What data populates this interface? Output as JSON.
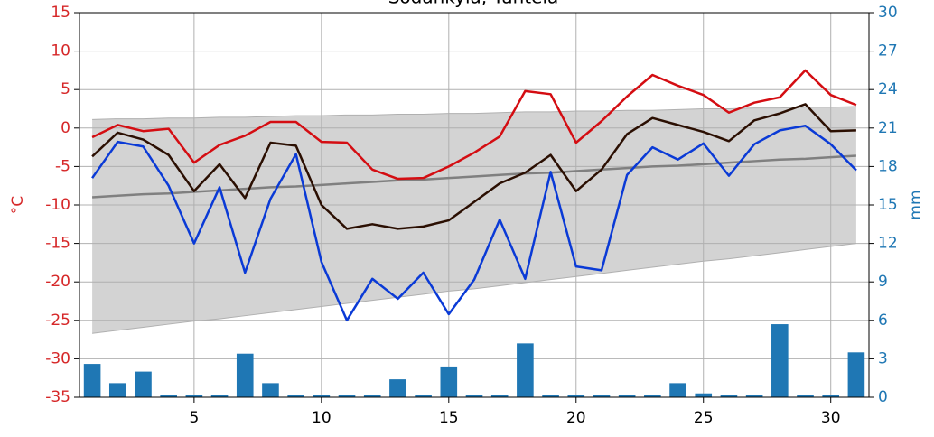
{
  "chart_data": {
    "type": "line",
    "title": "Sodankylä, Tähtelä",
    "ylabel": "°C",
    "y2label": "mm",
    "x": [
      1,
      2,
      3,
      4,
      5,
      6,
      7,
      8,
      9,
      10,
      11,
      12,
      13,
      14,
      15,
      16,
      17,
      18,
      19,
      20,
      21,
      22,
      23,
      24,
      25,
      26,
      27,
      28,
      29,
      30,
      31
    ],
    "xlim": [
      0.5,
      31.5
    ],
    "xticks": [
      5,
      10,
      15,
      20,
      25,
      30
    ],
    "ylim": [
      -35,
      15
    ],
    "yticks": [
      -35,
      -30,
      -25,
      -20,
      -15,
      -10,
      -5,
      0,
      5,
      10,
      15
    ],
    "y2lim": [
      0,
      30
    ],
    "y2ticks": [
      0,
      3,
      6,
      9,
      12,
      15,
      18,
      21,
      24,
      27,
      30
    ],
    "grid": true,
    "ycolor": "#d62728",
    "y2color": "#1f77b4",
    "band": {
      "color": "#d3d3d3",
      "edge": "#b0b0b0",
      "upper": [
        1.1,
        1.2,
        1.2,
        1.3,
        1.3,
        1.4,
        1.4,
        1.5,
        1.6,
        1.6,
        1.7,
        1.7,
        1.8,
        1.8,
        1.9,
        1.9,
        2.0,
        2.1,
        2.1,
        2.2,
        2.2,
        2.3,
        2.3,
        2.4,
        2.5,
        2.5,
        2.6,
        2.6,
        2.7,
        2.7,
        2.8
      ],
      "lower": [
        -26.7,
        -26.3,
        -25.9,
        -25.5,
        -25.1,
        -24.8,
        -24.4,
        -24.0,
        -23.6,
        -23.2,
        -22.8,
        -22.4,
        -22.0,
        -21.6,
        -21.2,
        -20.9,
        -20.5,
        -20.1,
        -19.7,
        -19.3,
        -18.9,
        -18.5,
        -18.1,
        -17.7,
        -17.3,
        -17.0,
        -16.6,
        -16.2,
        -15.8,
        -15.4,
        -15.0
      ]
    },
    "series": [
      {
        "color": "#1f77b4",
        "axis": "y2",
        "type": "bar",
        "values": [
          2.6,
          1.1,
          2.0,
          0.2,
          0.2,
          0.2,
          3.4,
          1.1,
          0.2,
          0.2,
          0.2,
          0.2,
          1.4,
          0.2,
          2.4,
          0.2,
          0.2,
          4.2,
          0.2,
          0.2,
          0.2,
          0.2,
          0.2,
          1.1,
          0.3,
          0.2,
          0.2,
          5.7,
          0.2,
          0.2,
          3.5
        ]
      },
      {
        "color": "#808080",
        "type": "line",
        "values": [
          -9.0,
          -8.8,
          -8.6,
          -8.5,
          -8.3,
          -8.1,
          -7.9,
          -7.7,
          -7.6,
          -7.4,
          -7.2,
          -7.0,
          -6.8,
          -6.7,
          -6.5,
          -6.3,
          -6.1,
          -5.9,
          -5.8,
          -5.6,
          -5.4,
          -5.2,
          -5.0,
          -4.9,
          -4.7,
          -4.5,
          -4.3,
          -4.1,
          -4.0,
          -3.8,
          -3.6
        ]
      },
      {
        "color": "#d40d12",
        "type": "line",
        "values": [
          -1.2,
          0.4,
          -0.4,
          -0.1,
          -4.5,
          -2.2,
          -1.0,
          0.8,
          0.8,
          -1.8,
          -1.9,
          -5.4,
          -6.6,
          -6.5,
          -5.0,
          -3.2,
          -1.1,
          4.8,
          4.4,
          -1.9,
          0.9,
          4.1,
          6.9,
          5.5,
          4.3,
          2.0,
          3.3,
          4.0,
          7.5,
          4.3,
          3.0
        ]
      },
      {
        "color": "#2b0f02",
        "type": "line",
        "values": [
          -3.7,
          -0.6,
          -1.5,
          -3.5,
          -8.2,
          -4.7,
          -9.1,
          -1.9,
          -2.3,
          -10.0,
          -13.1,
          -12.5,
          -13.1,
          -12.8,
          -12.0,
          -9.6,
          -7.2,
          -5.8,
          -3.5,
          -8.2,
          -5.4,
          -0.8,
          1.3,
          0.4,
          -0.5,
          -1.7,
          1.0,
          1.9,
          3.1,
          -0.4,
          -0.3
        ]
      },
      {
        "color": "#0a3ad6",
        "type": "line",
        "values": [
          -6.5,
          -1.8,
          -2.4,
          -7.5,
          -15.0,
          -7.7,
          -18.8,
          -9.2,
          -3.4,
          -17.4,
          -25.0,
          -19.6,
          -22.2,
          -18.8,
          -24.2,
          -19.7,
          -11.9,
          -19.6,
          -5.7,
          -18.0,
          -18.5,
          -6.1,
          -2.5,
          -4.1,
          -2.0,
          -6.2,
          -2.1,
          -0.3,
          0.3,
          -2.1,
          -5.5
        ]
      }
    ]
  }
}
